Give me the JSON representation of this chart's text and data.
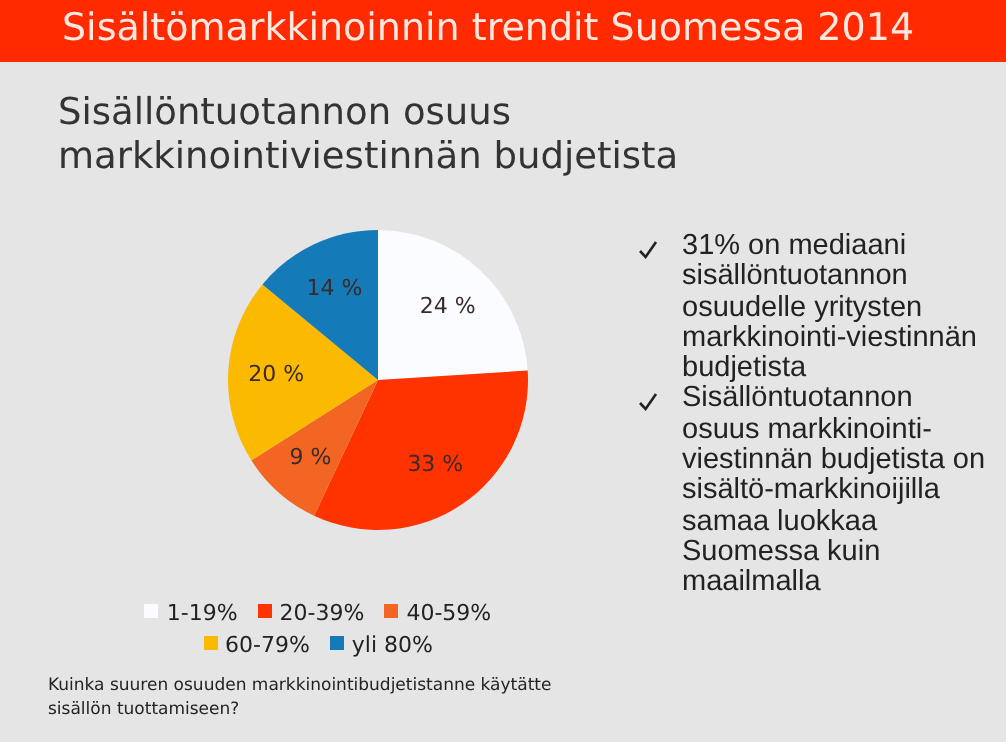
{
  "chart_data": {
    "type": "pie",
    "title": "Sisältömarkkinoinnin trendit Suomessa 2014",
    "subtitle": "Sisällöntuotannon osuus markkinointiviestinnän budjetista",
    "categories": [
      "1-19%",
      "20-39%",
      "40-59%",
      "60-79%",
      "yli 80%"
    ],
    "values": [
      24,
      33,
      9,
      20,
      14
    ],
    "colors": [
      "#fafcff",
      "#ff3300",
      "#f26522",
      "#fbb900",
      "#157ab8"
    ],
    "value_labels": [
      "24 %",
      "33 %",
      "9 %",
      "20 %",
      "14 %"
    ],
    "legend": "bottom",
    "annotations": [
      "31% on mediaani sisällöntuotannon osuudelle yritysten markkinointi-viestinnän budjetista",
      "Sisällöntuotannon osuus markkinointi-viestinnän budjetista on sisältö-markkinoijilla samaa luokkaa Suomessa kuin maailmalla",
      "Kuinka suuren osuuden markkinointibudjetistanne käytätte sisällön tuottamiseen?"
    ]
  }
}
